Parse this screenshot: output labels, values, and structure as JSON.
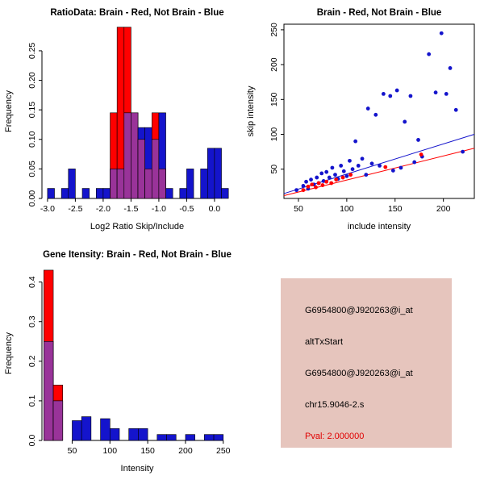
{
  "window": {
    "bg_color": "#ffffff"
  },
  "panels": {
    "info": {
      "lines": [
        "G6954800@J920263@i_at",
        "altTxStart",
        "G6954800@J920263@i_at",
        "chr15.9046-2.s"
      ],
      "pval_line": "Pval: 2.000000",
      "bg_color": "#e6c5bd",
      "text_color": "#000000",
      "pval_color": "#e00000"
    }
  },
  "chart_data": [
    {
      "type": "bar",
      "title": "RatioData: Brain - Red, Not Brain - Blue",
      "xlabel": "Log2 Ratio Skip/Include",
      "ylabel": "Frequency",
      "xlim": [
        -3.1,
        0.32
      ],
      "ylim": [
        0,
        0.295
      ],
      "box": false,
      "xticks": [
        -3.0,
        -2.5,
        -2.0,
        -1.5,
        -1.0,
        -0.5,
        0.0
      ],
      "xtick_labels": [
        "-3.0",
        "-2.5",
        "-2.0",
        "-1.5",
        "-1.0",
        "-0.5",
        "0.0"
      ],
      "yticks": [
        0.0,
        0.05,
        0.1,
        0.15,
        0.2,
        0.25
      ],
      "ytick_labels": [
        "0.00",
        "0.05",
        "0.10",
        "0.15",
        "0.20",
        "0.25"
      ],
      "bin_width": 0.125,
      "bin_centers": [
        -2.9375,
        -2.8125,
        -2.6875,
        -2.5625,
        -2.4375,
        -2.3125,
        -2.1875,
        -2.0625,
        -1.9375,
        -1.8125,
        -1.6875,
        -1.5625,
        -1.4375,
        -1.3125,
        -1.1875,
        -1.0625,
        -0.9375,
        -0.8125,
        -0.6875,
        -0.5625,
        -0.4375,
        -0.3125,
        -0.1875,
        -0.0625,
        0.0625,
        0.1875
      ],
      "overlap_color": "#993399",
      "series": [
        {
          "name": "Brain",
          "color": "#ff0000",
          "values": [
            0,
            0,
            0,
            0,
            0,
            0,
            0,
            0,
            0,
            0.145,
            0.29,
            0.29,
            0.145,
            0.1,
            0.05,
            0.145,
            0.05,
            0,
            0,
            0,
            0,
            0,
            0,
            0,
            0,
            0
          ]
        },
        {
          "name": "Not Brain",
          "color": "#1414cc",
          "values": [
            0.017,
            0,
            0.017,
            0.05,
            0,
            0.017,
            0,
            0.017,
            0.017,
            0.05,
            0.05,
            0.145,
            0.145,
            0.12,
            0.12,
            0.1,
            0.145,
            0.017,
            0,
            0.017,
            0.05,
            0,
            0.05,
            0.085,
            0.085,
            0.017
          ]
        }
      ]
    },
    {
      "type": "scatter",
      "title": "Brain - Red, Not Brain - Blue",
      "xlabel": "include intensity",
      "ylabel": "skip intensity",
      "xlim": [
        35,
        232
      ],
      "ylim": [
        8,
        258
      ],
      "box": true,
      "xticks": [
        50,
        100,
        150,
        200
      ],
      "xtick_labels": [
        "50",
        "100",
        "150",
        "200"
      ],
      "yticks": [
        50,
        100,
        150,
        200,
        250
      ],
      "ytick_labels": [
        "50",
        "100",
        "150",
        "200",
        "250"
      ],
      "lines": [
        {
          "color": "#1414cc",
          "x1": 35,
          "y1": 15,
          "x2": 232,
          "y2": 100
        },
        {
          "color": "#ff0000",
          "x1": 35,
          "y1": 12,
          "x2": 232,
          "y2": 80
        }
      ],
      "series": [
        {
          "name": "Not Brain",
          "color": "#1414cc",
          "points": [
            [
              48,
              20
            ],
            [
              55,
              26
            ],
            [
              58,
              32
            ],
            [
              60,
              22
            ],
            [
              63,
              35
            ],
            [
              66,
              28
            ],
            [
              69,
              38
            ],
            [
              71,
              30
            ],
            [
              74,
              44
            ],
            [
              76,
              33
            ],
            [
              79,
              46
            ],
            [
              82,
              38
            ],
            [
              85,
              52
            ],
            [
              88,
              42
            ],
            [
              91,
              36
            ],
            [
              94,
              55
            ],
            [
              97,
              47
            ],
            [
              100,
              40
            ],
            [
              103,
              62
            ],
            [
              106,
              50
            ],
            [
              109,
              90
            ],
            [
              112,
              55
            ],
            [
              116,
              65
            ],
            [
              120,
              42
            ],
            [
              122,
              137
            ],
            [
              126,
              58
            ],
            [
              130,
              128
            ],
            [
              134,
              55
            ],
            [
              138,
              158
            ],
            [
              145,
              155
            ],
            [
              148,
              48
            ],
            [
              152,
              163
            ],
            [
              156,
              52
            ],
            [
              160,
              118
            ],
            [
              166,
              155
            ],
            [
              170,
              60
            ],
            [
              174,
              92
            ],
            [
              178,
              68
            ],
            [
              185,
              215
            ],
            [
              192,
              160
            ],
            [
              198,
              245
            ],
            [
              203,
              158
            ],
            [
              207,
              195
            ],
            [
              213,
              135
            ],
            [
              220,
              75
            ]
          ]
        },
        {
          "name": "Brain",
          "color": "#ff0000",
          "points": [
            [
              55,
              20
            ],
            [
              60,
              25
            ],
            [
              64,
              28
            ],
            [
              68,
              24
            ],
            [
              71,
              30
            ],
            [
              75,
              27
            ],
            [
              79,
              32
            ],
            [
              84,
              30
            ],
            [
              89,
              35
            ],
            [
              96,
              38
            ],
            [
              104,
              42
            ],
            [
              140,
              53
            ],
            [
              177,
              71
            ]
          ]
        }
      ]
    },
    {
      "type": "bar",
      "title": "Gene Itensity: Brain - Red, Not Brain - Blue",
      "xlabel": "Intensity",
      "ylabel": "Frequency",
      "xlim": [
        10,
        262
      ],
      "ylim": [
        0,
        0.44
      ],
      "box": false,
      "xticks": [
        50,
        100,
        150,
        200,
        250
      ],
      "xtick_labels": [
        "50",
        "100",
        "150",
        "200",
        "250"
      ],
      "yticks": [
        0.0,
        0.1,
        0.2,
        0.3,
        0.4
      ],
      "ytick_labels": [
        "0.0",
        "0.1",
        "0.2",
        "0.3",
        "0.4"
      ],
      "bin_width": 12.5,
      "bin_centers": [
        18.75,
        31.25,
        43.75,
        56.25,
        68.75,
        81.25,
        93.75,
        106.25,
        118.75,
        131.25,
        143.75,
        156.25,
        168.75,
        181.25,
        193.75,
        206.25,
        218.75,
        231.25,
        243.75
      ],
      "overlap_color": "#993399",
      "series": [
        {
          "name": "Brain",
          "color": "#ff0000",
          "values": [
            0.43,
            0.14,
            0,
            0,
            0,
            0,
            0,
            0,
            0,
            0,
            0,
            0,
            0,
            0,
            0,
            0,
            0,
            0,
            0
          ]
        },
        {
          "name": "Not Brain",
          "color": "#1414cc",
          "values": [
            0.25,
            0.1,
            0,
            0.05,
            0.06,
            0,
            0.055,
            0.03,
            0,
            0.03,
            0.03,
            0,
            0.015,
            0.015,
            0,
            0.015,
            0,
            0.015,
            0.015
          ]
        }
      ]
    }
  ]
}
